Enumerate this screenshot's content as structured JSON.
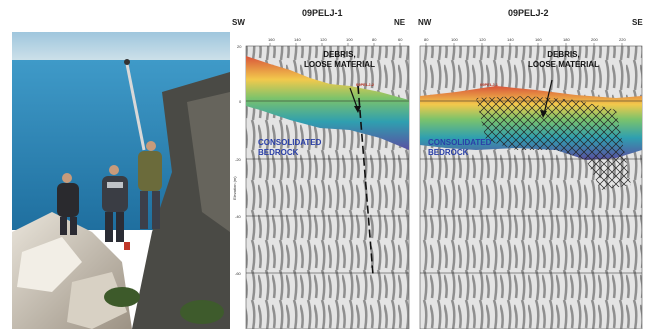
{
  "photo": {
    "alt_subject": "Field survey on rocky coast"
  },
  "left_profile": {
    "title": "09PELJ-1",
    "dir_left": "SW",
    "dir_right": "NE",
    "debris_label_line1": "DEBRIS,",
    "debris_label_line2": "LOOSE MATERIAL",
    "bedrock_label_line1": "CONSOLIDATED",
    "bedrock_label_line2": "BEDROCK",
    "cross_profile": "09PELJ-2",
    "y_axis_label": "Elevation (m)",
    "y_ticks": [
      "20",
      "0",
      "-20",
      "-40",
      "-60"
    ],
    "x_ticks": [
      "160",
      "140",
      "120",
      "100",
      "80",
      "60"
    ]
  },
  "right_profile": {
    "title": "09PELJ-2",
    "dir_left": "NW",
    "dir_right": "SE",
    "debris_label_line1": "DEBRIS,",
    "debris_label_line2": "LOOSE MATERIAL",
    "bedrock_label_line1": "CONSOLIDATED",
    "bedrock_label_line2": "BEDROCK",
    "cross_profile": "09PELJ-1",
    "x_ticks": [
      "80",
      "100",
      "120",
      "140",
      "160",
      "180",
      "200",
      "220"
    ]
  },
  "colors": {
    "sea": "#2e86b8",
    "debris_top": "#d9553a",
    "bedrock_label": "#2a3fa8"
  }
}
